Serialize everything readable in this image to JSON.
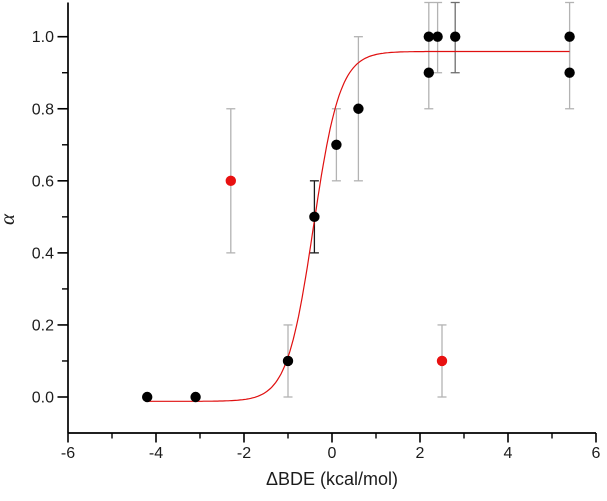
{
  "chart_data": {
    "type": "scatter",
    "title": "",
    "xlabel": "ΔBDE (kcal/mol)",
    "ylabel": "α",
    "xlim": [
      -6,
      6
    ],
    "ylim": [
      -0.1,
      1.1
    ],
    "x_major_ticks": [
      -6,
      -4,
      -2,
      0,
      2,
      4,
      6
    ],
    "x_minor_ticks": [
      -5,
      -3,
      -1,
      1,
      3,
      5
    ],
    "y_major_ticks": [
      0.0,
      0.2,
      0.4,
      0.6,
      0.8,
      1.0
    ],
    "y_minor_ticks": [
      0.1,
      0.3,
      0.5,
      0.7,
      0.9
    ],
    "grid": false,
    "legend": null,
    "axis_color": "#000000",
    "tick_label_color": "#1c1c1c",
    "error_bar_color": "#b3b3b3",
    "series": [
      {
        "name": "alpha-data",
        "type": "scatter",
        "color": "#000000",
        "marker": "circle",
        "points": [
          {
            "x": -4.2,
            "y": 0.0
          },
          {
            "x": -3.1,
            "y": 0.0
          },
          {
            "x": -1.0,
            "y": 0.1,
            "yerr": 0.1
          },
          {
            "x": -0.4,
            "y": 0.5,
            "yerr": 0.1,
            "bar_color": "#1a1a1a"
          },
          {
            "x": 0.1,
            "y": 0.7,
            "yerr": 0.1
          },
          {
            "x": 0.6,
            "y": 0.8,
            "yerr": 0.2
          },
          {
            "x": 2.2,
            "y": 1.0,
            "yerr": 0.1
          },
          {
            "x": 2.4,
            "y": 1.0,
            "yerr": 0.1
          },
          {
            "x": 2.8,
            "y": 1.0,
            "yerr": 0.1,
            "bar_color": "#6e6e6e"
          },
          {
            "x": 2.2,
            "y": 0.9,
            "yerr": 0.1
          },
          {
            "x": 5.4,
            "y": 1.0,
            "yerr": 0.1
          },
          {
            "x": 5.4,
            "y": 0.9,
            "yerr": 0.1
          }
        ]
      },
      {
        "name": "excluded-points",
        "type": "scatter",
        "color": "#e81111",
        "marker": "circle",
        "points": [
          {
            "x": -2.3,
            "y": 0.6,
            "yerr": 0.2
          },
          {
            "x": 2.5,
            "y": 0.1,
            "yerr": 0.1
          }
        ]
      },
      {
        "name": "boltzmann-fit",
        "type": "line",
        "color": "#e01010",
        "fit": {
          "model": "boltzmann",
          "A1": -0.012,
          "A2": 0.959,
          "x0": -0.42,
          "dx": 0.3,
          "x_start": -4.2,
          "x_end": 5.43
        }
      }
    ]
  }
}
